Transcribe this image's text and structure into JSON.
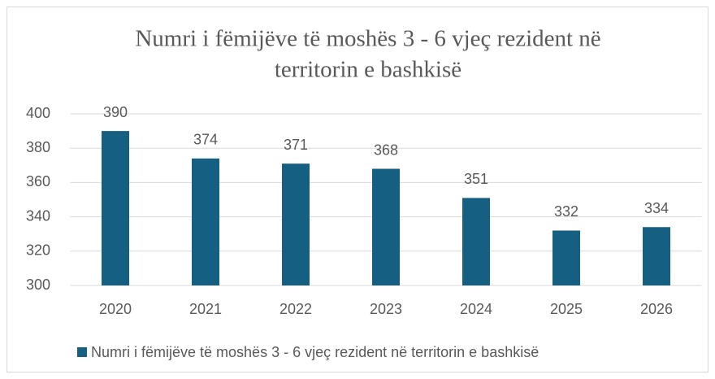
{
  "chart_data": {
    "type": "bar",
    "title": [
      "Numri i fëmijëve të moshës 3 - 6 vjeç rezident në",
      "territorin e bashkisë"
    ],
    "categories": [
      "2020",
      "2021",
      "2022",
      "2023",
      "2024",
      "2025",
      "2026"
    ],
    "series": [
      {
        "name": "Numri i fëmijëve të moshës 3 - 6 vjeç rezident në territorin e bashkisë",
        "color": "#156082",
        "values": [
          390,
          374,
          371,
          368,
          351,
          332,
          334
        ]
      }
    ],
    "ylim": [
      300,
      400
    ],
    "yticks": [
      300,
      320,
      340,
      360,
      380,
      400
    ],
    "grid": true,
    "legend": "bottom"
  }
}
